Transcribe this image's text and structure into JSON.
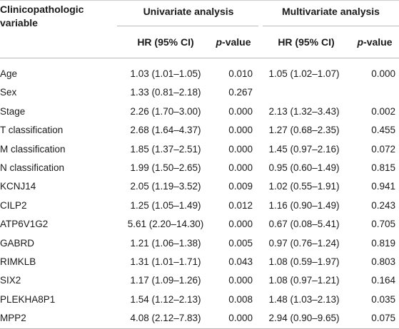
{
  "header": {
    "variable": "Clinicopathologic variable",
    "univariate": "Univariate analysis",
    "multivariate": "Multivariate analysis",
    "hr": "HR (95% CI)",
    "p_italic": "p",
    "p_rest": "-value"
  },
  "rows": [
    {
      "var": "Age",
      "uni_hr": "1.03 (1.01–1.05)",
      "uni_p": "0.010",
      "multi_hr": "1.05 (1.02–1.07)",
      "multi_p": "0.000"
    },
    {
      "var": "Sex",
      "uni_hr": "1.33 (0.81–2.18)",
      "uni_p": "0.267",
      "multi_hr": "",
      "multi_p": ""
    },
    {
      "var": "Stage",
      "uni_hr": "2.26 (1.70–3.00)",
      "uni_p": "0.000",
      "multi_hr": "2.13 (1.32–3.43)",
      "multi_p": "0.002"
    },
    {
      "var": "T classification",
      "uni_hr": "2.68 (1.64–4.37)",
      "uni_p": "0.000",
      "multi_hr": "1.27 (0.68–2.35)",
      "multi_p": "0.455"
    },
    {
      "var": "M classification",
      "uni_hr": "1.85 (1.37–2.51)",
      "uni_p": "0.000",
      "multi_hr": "1.45 (0.97–2.16)",
      "multi_p": "0.072"
    },
    {
      "var": "N classification",
      "uni_hr": "1.99 (1.50–2.65)",
      "uni_p": "0.000",
      "multi_hr": "0.95 (0.60–1.49)",
      "multi_p": "0.815"
    },
    {
      "var": "KCNJ14",
      "uni_hr": "2.05 (1.19–3.52)",
      "uni_p": "0.009",
      "multi_hr": "1.02 (0.55–1.91)",
      "multi_p": "0.941"
    },
    {
      "var": "CILP2",
      "uni_hr": "1.25 (1.05–1.49)",
      "uni_p": "0.012",
      "multi_hr": "1.16 (0.90–1.49)",
      "multi_p": "0.243"
    },
    {
      "var": "ATP6V1G2",
      "uni_hr": "5.61 (2.20–14.30)",
      "uni_p": "0.000",
      "multi_hr": "0.67 (0.08–5.41)",
      "multi_p": "0.705"
    },
    {
      "var": "GABRD",
      "uni_hr": "1.21 (1.06–1.38)",
      "uni_p": "0.005",
      "multi_hr": "0.97 (0.76–1.24)",
      "multi_p": "0.819"
    },
    {
      "var": "RIMKLB",
      "uni_hr": "1.31 (1.01–1.71)",
      "uni_p": "0.043",
      "multi_hr": "1.08 (0.59–1.97)",
      "multi_p": "0.803"
    },
    {
      "var": "SIX2",
      "uni_hr": "1.17 (1.09–1.26)",
      "uni_p": "0.000",
      "multi_hr": "1.08 (0.97–1.21)",
      "multi_p": "0.164"
    },
    {
      "var": "PLEKHA8P1",
      "uni_hr": "1.54 (1.12–2.13)",
      "uni_p": "0.008",
      "multi_hr": "1.48 (1.03–2.13)",
      "multi_p": "0.035"
    },
    {
      "var": "MPP2",
      "uni_hr": "4.08 (2.12–7.83)",
      "uni_p": "0.000",
      "multi_hr": "2.94 (0.90–9.65)",
      "multi_p": "0.075"
    }
  ]
}
